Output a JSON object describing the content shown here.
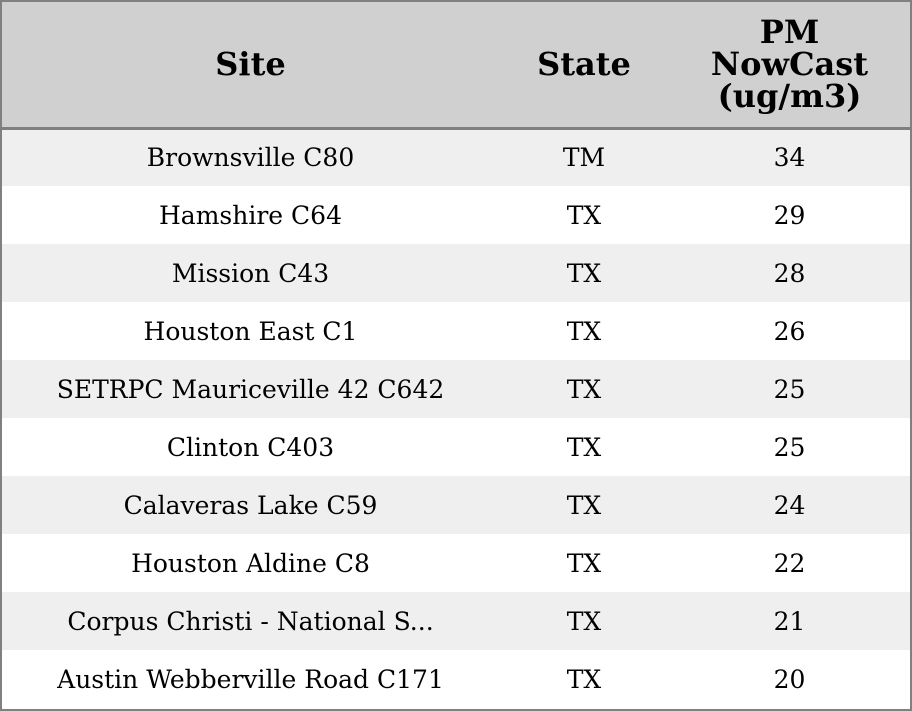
{
  "chart_data": {
    "type": "table",
    "columns": [
      "Site",
      "State",
      "PM NowCast (ug/m3)"
    ],
    "header_lines": {
      "site": [
        "Site"
      ],
      "state": [
        "State"
      ],
      "pm": [
        "PM",
        "NowCast",
        "(ug/m3)"
      ]
    },
    "rows": [
      {
        "site": "Brownsville C80",
        "state": "TM",
        "pm": "34"
      },
      {
        "site": "Hamshire C64",
        "state": "TX",
        "pm": "29"
      },
      {
        "site": "Mission C43",
        "state": "TX",
        "pm": "28"
      },
      {
        "site": "Houston East C1",
        "state": "TX",
        "pm": "26"
      },
      {
        "site": "SETRPC Mauriceville 42 C642",
        "state": "TX",
        "pm": "25"
      },
      {
        "site": "Clinton C403",
        "state": "TX",
        "pm": "25"
      },
      {
        "site": "Calaveras Lake C59",
        "state": "TX",
        "pm": "24"
      },
      {
        "site": "Houston Aldine C8",
        "state": "TX",
        "pm": "22"
      },
      {
        "site": "Corpus Christi - National S...",
        "state": "TX",
        "pm": "21"
      },
      {
        "site": "Austin Webberville Road C171",
        "state": "TX",
        "pm": "20"
      }
    ]
  },
  "colors": {
    "header_bg": "#d0d0d0",
    "row_alt_bg": "#efefef",
    "row_bg": "#ffffff",
    "border": "#808080"
  }
}
